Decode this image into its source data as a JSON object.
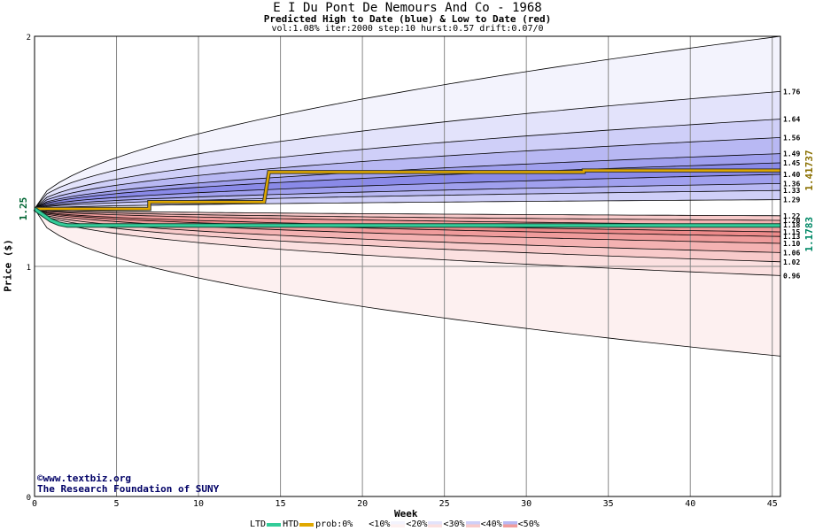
{
  "title": "E I Du Pont De Nemours And Co - 1968",
  "subtitle": "Predicted High to Date (blue) &  Low to Date (red)",
  "params": "vol:1.08% iter:2000 step:10 hurst:0.57 drift:0.07/0",
  "credit_line1": "www.textbiz.org",
  "credit_line2": "The Research Foundation of SUNY",
  "copyright_symbol": "©",
  "legend": {
    "ltd": "LTD",
    "htd": "HTD",
    "prob": "prob:0%",
    "p10": "<10%",
    "p20": "<20%",
    "p30": "<30%",
    "p40": "<40%",
    "p50": "<50%"
  },
  "colors": {
    "htd": "#e0a800",
    "ltd": "#33cc99",
    "blue_bands": [
      "#f3f3fd",
      "#e3e3fb",
      "#cfcff8",
      "#b8b8f3",
      "#a0a0ee",
      "#8a8ae8"
    ],
    "red_bands": [
      "#fdf0f0",
      "#fbe0e0",
      "#f8caca",
      "#f4b2b2",
      "#f09c9c",
      "#ec8a8a"
    ]
  },
  "chart_data": {
    "type": "area",
    "title": "E I Du Pont De Nemours And Co - 1968",
    "subtitle": "Predicted High to Date (blue) &  Low to Date (red)",
    "xlabel": "Week",
    "ylabel": "Price ($)",
    "xlim": [
      0,
      45.5
    ],
    "ylim": [
      0,
      2
    ],
    "x_ticks": [
      0,
      5,
      10,
      15,
      20,
      25,
      30,
      35,
      40,
      45
    ],
    "y_ticks": [
      0,
      1,
      2
    ],
    "grid": true,
    "start_value": 1.25,
    "start_label": "1.25",
    "htd_label": "1.41737",
    "ltd_label": "1.1783",
    "high_quantiles_end": [
      1.76,
      1.64,
      1.56,
      1.49,
      1.45,
      1.4,
      1.36,
      1.33,
      1.29
    ],
    "low_quantiles_end": [
      1.22,
      1.2,
      1.18,
      1.15,
      1.13,
      1.1,
      1.06,
      1.02,
      0.96
    ],
    "high_end_labels": [
      "1.76",
      "1.64",
      "1.56",
      "1.49",
      "1.45",
      "1.40",
      "1.36",
      "1.33",
      "1.29"
    ],
    "low_end_labels": [
      "1.22",
      "1.20",
      "1.18",
      "1.15",
      "1.13",
      "1.10",
      "1.06",
      "1.02",
      "0.96"
    ],
    "outer_high_end": 2.0,
    "outer_low_end": 0.61,
    "htd_series": {
      "name": "HTD",
      "x": [
        0,
        1,
        1,
        7,
        7,
        14,
        14.3,
        33.5,
        33.5,
        45.5
      ],
      "y": [
        1.25,
        1.25,
        1.25,
        1.25,
        1.28,
        1.28,
        1.41,
        1.41,
        1.417,
        1.417
      ]
    },
    "ltd_series": {
      "name": "LTD",
      "x": [
        0,
        1,
        1.5,
        2,
        45.5
      ],
      "y": [
        1.25,
        1.2,
        1.185,
        1.178,
        1.178
      ]
    }
  }
}
